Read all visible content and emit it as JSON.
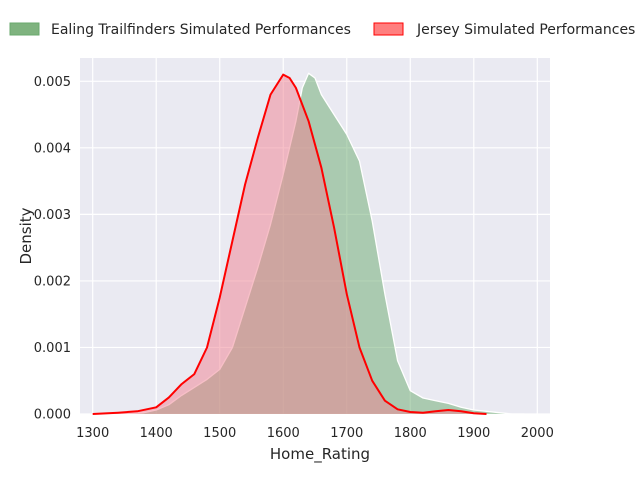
{
  "chart_data": {
    "type": "area",
    "title": "",
    "xlabel": "Home_Rating",
    "ylabel": "Density",
    "xlim": [
      1280,
      2020
    ],
    "ylim": [
      0,
      0.00535
    ],
    "grid": true,
    "legend_position": "top",
    "xticks": [
      "1300",
      "1400",
      "1500",
      "1600",
      "1700",
      "1800",
      "1900",
      "2000"
    ],
    "yticks": [
      "0.000",
      "0.001",
      "0.002",
      "0.003",
      "0.004",
      "0.005"
    ],
    "series": [
      {
        "name": "Ealing Trailfinders Simulated Performances",
        "fill": "#6aa96e",
        "line": "#ffffff",
        "points": [
          [
            1350,
            0.0
          ],
          [
            1380,
            2e-05
          ],
          [
            1400,
            6e-05
          ],
          [
            1420,
            0.00014
          ],
          [
            1440,
            0.00028
          ],
          [
            1460,
            0.0004
          ],
          [
            1480,
            0.00052
          ],
          [
            1500,
            0.00067
          ],
          [
            1520,
            0.001
          ],
          [
            1540,
            0.0016
          ],
          [
            1560,
            0.0022
          ],
          [
            1580,
            0.00285
          ],
          [
            1600,
            0.0036
          ],
          [
            1620,
            0.0044
          ],
          [
            1630,
            0.0049
          ],
          [
            1640,
            0.00512
          ],
          [
            1650,
            0.00505
          ],
          [
            1660,
            0.0048
          ],
          [
            1680,
            0.0045
          ],
          [
            1700,
            0.0042
          ],
          [
            1720,
            0.0038
          ],
          [
            1740,
            0.0029
          ],
          [
            1760,
            0.0018
          ],
          [
            1780,
            0.0008
          ],
          [
            1800,
            0.00035
          ],
          [
            1820,
            0.00024
          ],
          [
            1840,
            0.0002
          ],
          [
            1860,
            0.00016
          ],
          [
            1880,
            0.0001
          ],
          [
            1900,
            6e-05
          ],
          [
            1920,
            4e-05
          ],
          [
            1940,
            2e-05
          ],
          [
            1960,
            0.0
          ],
          [
            1980,
            0.0
          ]
        ]
      },
      {
        "name": "Jersey Simulated Performances",
        "fill": "#f07f8f",
        "line": "#ff0000",
        "points": [
          [
            1300,
            0.0
          ],
          [
            1340,
            2e-05
          ],
          [
            1370,
            4e-05
          ],
          [
            1400,
            0.0001
          ],
          [
            1420,
            0.00025
          ],
          [
            1440,
            0.00045
          ],
          [
            1460,
            0.0006
          ],
          [
            1480,
            0.001
          ],
          [
            1500,
            0.00175
          ],
          [
            1520,
            0.0026
          ],
          [
            1540,
            0.00345
          ],
          [
            1560,
            0.00415
          ],
          [
            1580,
            0.0048
          ],
          [
            1600,
            0.0051
          ],
          [
            1610,
            0.00505
          ],
          [
            1620,
            0.0049
          ],
          [
            1640,
            0.0044
          ],
          [
            1660,
            0.0037
          ],
          [
            1680,
            0.0028
          ],
          [
            1700,
            0.0018
          ],
          [
            1720,
            0.001
          ],
          [
            1740,
            0.0005
          ],
          [
            1760,
            0.0002
          ],
          [
            1780,
            7e-05
          ],
          [
            1800,
            3e-05
          ],
          [
            1820,
            2e-05
          ],
          [
            1840,
            4e-05
          ],
          [
            1860,
            6e-05
          ],
          [
            1880,
            4e-05
          ],
          [
            1900,
            1e-05
          ],
          [
            1920,
            0.0
          ]
        ]
      }
    ]
  },
  "legend": {
    "ealing_label": "Ealing Trailfinders Simulated Performances",
    "jersey_label": "Jersey Simulated Performances"
  }
}
